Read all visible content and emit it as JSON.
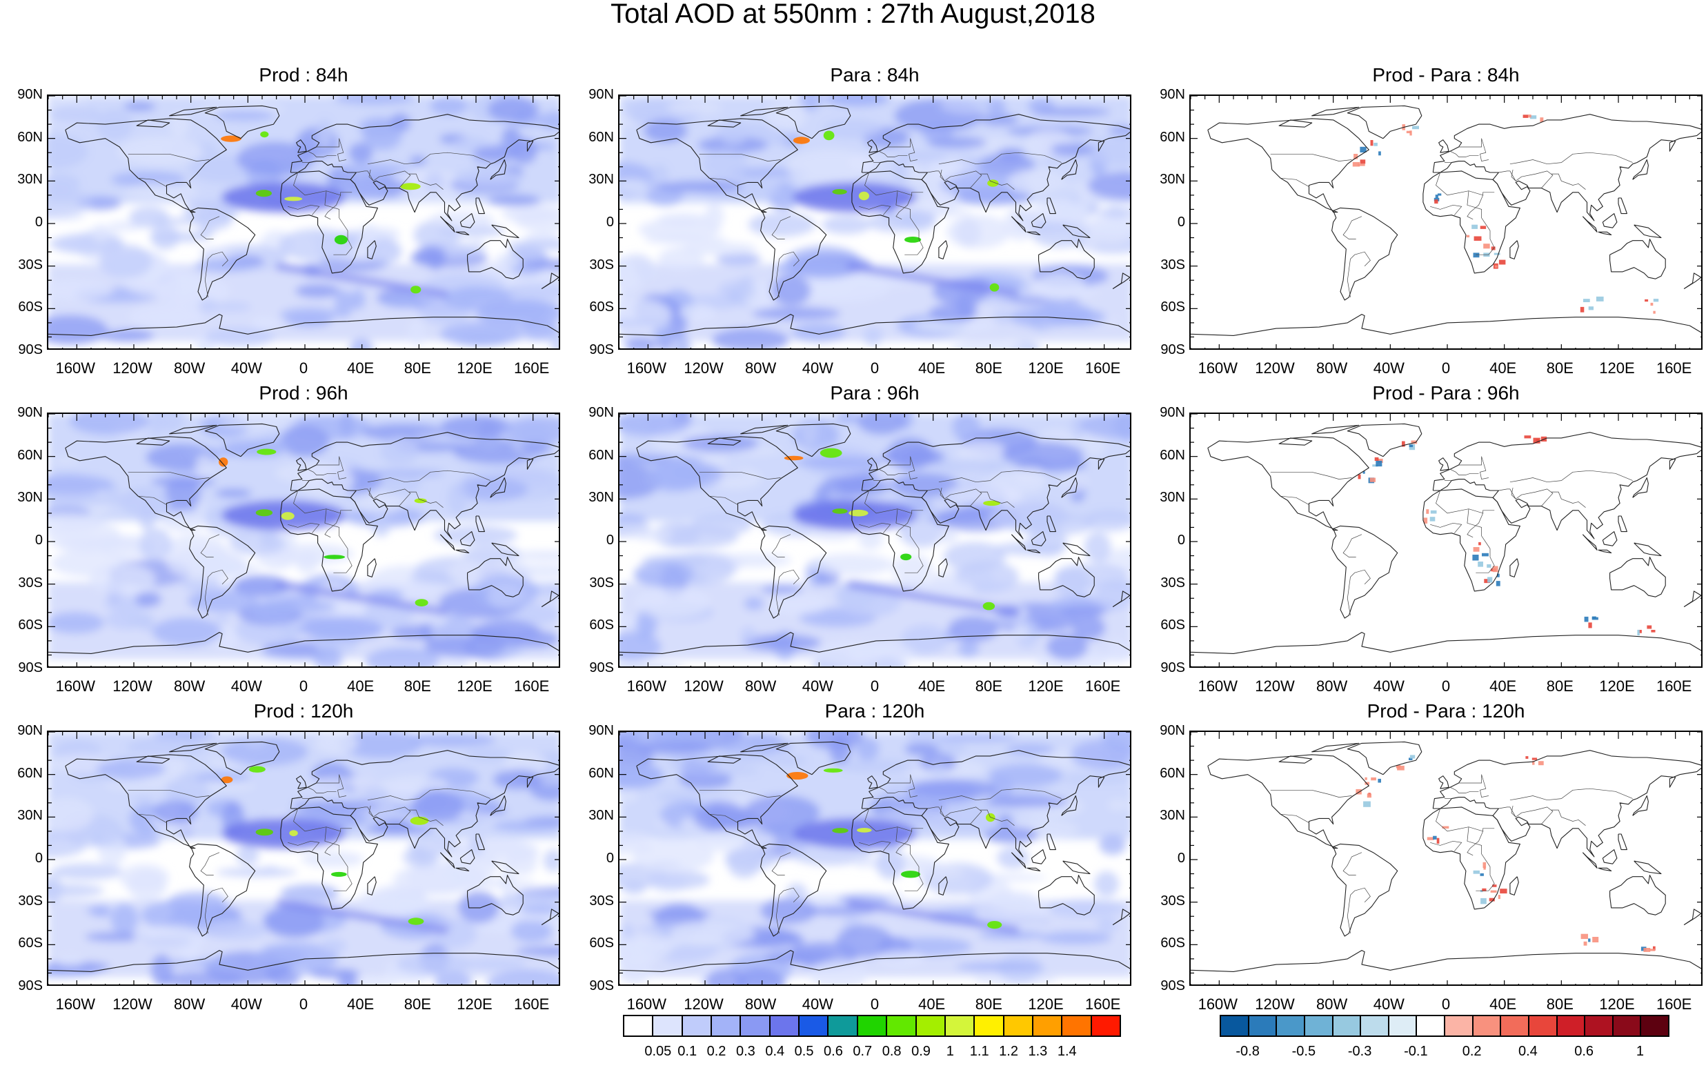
{
  "title": "Total AOD at 550nm : 27th August,2018",
  "lat_labels": [
    "90N",
    "60N",
    "30N",
    "0",
    "30S",
    "60S",
    "90S"
  ],
  "lon_labels": [
    "160W",
    "120W",
    "80W",
    "40W",
    "0",
    "40E",
    "80E",
    "120E",
    "160E"
  ],
  "panels": [
    {
      "title": "Prod : 84h",
      "kind": "aod",
      "seed": 11
    },
    {
      "title": "Para : 84h",
      "kind": "aod",
      "seed": 12
    },
    {
      "title": "Prod - Para : 84h",
      "kind": "diff",
      "seed": 13
    },
    {
      "title": "Prod : 96h",
      "kind": "aod",
      "seed": 21
    },
    {
      "title": "Para : 96h",
      "kind": "aod",
      "seed": 22
    },
    {
      "title": "Prod - Para : 96h",
      "kind": "diff",
      "seed": 23
    },
    {
      "title": "Prod : 120h",
      "kind": "aod",
      "seed": 31
    },
    {
      "title": "Para : 120h",
      "kind": "aod",
      "seed": 32
    },
    {
      "title": "Prod - Para : 120h",
      "kind": "diff",
      "seed": 33
    }
  ],
  "aod_colorbar": {
    "colors": [
      "#ffffff",
      "#dde4fd",
      "#c0ccfb",
      "#a3b3f8",
      "#8a99f3",
      "#6c75ec",
      "#1a5ae6",
      "#0f9a9a",
      "#20d400",
      "#62e800",
      "#a4ee00",
      "#d4f53a",
      "#fff000",
      "#ffc800",
      "#ff9f00",
      "#ff7400",
      "#ff1a00"
    ],
    "labels": [
      "0.05",
      "0.1",
      "0.2",
      "0.3",
      "0.4",
      "0.5",
      "0.6",
      "0.7",
      "0.8",
      "0.9",
      "1",
      "1.1",
      "1.2",
      "1.3",
      "1.4"
    ]
  },
  "diff_colorbar": {
    "colors": [
      "#08589e",
      "#2b7bba",
      "#4a98c9",
      "#6fb2d6",
      "#97c9e0",
      "#bddcec",
      "#deedf6",
      "#ffffff",
      "#fbb4a6",
      "#f8917e",
      "#f26c5a",
      "#e8463b",
      "#cf1f28",
      "#ae1221",
      "#8a0a1a",
      "#5d0110"
    ],
    "labels": [
      "-0.8",
      "-0.5",
      "-0.3",
      "-0.1",
      "0.2",
      "0.4",
      "0.6",
      "1"
    ]
  }
}
